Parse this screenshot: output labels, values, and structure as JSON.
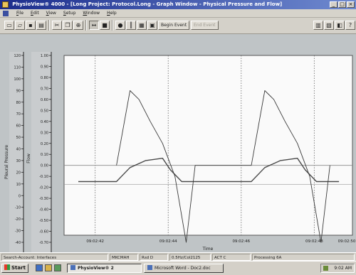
{
  "window": {
    "title": "PhysioView® 4000 - [Long Project: Protocol.Long - Graph Window - Physical Pressure and Flow]",
    "controls": [
      "_",
      "□",
      "×"
    ]
  },
  "menu": {
    "items": [
      {
        "mnemonic": "F",
        "rest": "ile"
      },
      {
        "mnemonic": "E",
        "rest": "dit"
      },
      {
        "mnemonic": "V",
        "rest": "iew"
      },
      {
        "mnemonic": "S",
        "rest": "etup"
      },
      {
        "mnemonic": "W",
        "rest": "indow"
      },
      {
        "mnemonic": "H",
        "rest": "elp"
      }
    ]
  },
  "toolbar": {
    "buttons": [
      "new",
      "open",
      "save",
      "print",
      "cut",
      "copy",
      "zoom",
      "bars",
      "grid",
      "cursor",
      "stop",
      "record",
      "markers",
      "mark-event",
      "calibrate"
    ],
    "begin_event_label": "Begin Event",
    "disabled_label": "End Event"
  },
  "chart_data": {
    "type": "line",
    "xlabel": "Time",
    "x_ticks": [
      "09:02:42",
      "09:02:44",
      "09:02:46",
      "09:02:48",
      "09:02:50"
    ],
    "y_axis_outer": {
      "label": "Pleural Pressure",
      "ticks": [
        "120",
        "110",
        "100",
        "90",
        "80",
        "70",
        "60",
        "50",
        "40",
        "30",
        "20",
        "10",
        "0",
        "-10",
        "-20",
        "-30",
        "-40"
      ]
    },
    "y_axis_inner": {
      "label": "Flow",
      "ticks": [
        "1.00",
        "0.90",
        "0.80",
        "0.70",
        "0.60",
        "0.50",
        "0.40",
        "0.30",
        "0.20",
        "0.10",
        "0.00",
        "-0.10",
        "-0.20",
        "-0.30",
        "-0.40",
        "-0.50",
        "-0.60",
        "-0.70"
      ]
    },
    "series": [
      {
        "color": "#4a4a4a",
        "x": [
          0,
          1.7,
          2.3,
          3.0,
          3.75,
          4.1,
          4.6,
          5.5,
          6.0,
          7.7,
          8.3,
          9.0,
          9.75,
          10.1,
          10.6,
          11.6
        ],
        "y": [
          12,
          12,
          24,
          30,
          32,
          22,
          12,
          12,
          12,
          12,
          24,
          30,
          32,
          22,
          12,
          12
        ]
      },
      {
        "color": "#3a3a3a",
        "x": [
          1.7,
          2.3,
          2.7,
          3.2,
          3.75,
          4.3,
          4.8,
          5.2,
          7.7,
          8.3,
          8.7,
          9.2,
          9.75,
          10.3,
          10.8,
          11.2
        ],
        "y": [
          0.0,
          0.68,
          0.6,
          0.4,
          0.2,
          -0.1,
          -0.7,
          0.0,
          0.0,
          0.68,
          0.6,
          0.4,
          0.2,
          -0.1,
          -0.7,
          0.0
        ]
      }
    ]
  },
  "status": {
    "cells": [
      "Search-Account: Interfaces",
      "MKCMAH",
      "Rsd D",
      "0.5Hz/Col2125",
      "ACT C",
      "Processing 6A"
    ]
  },
  "taskbar": {
    "start_label": "Start",
    "tasks": [
      {
        "label": "PhysioView® 2",
        "active": true
      },
      {
        "label": "Microsoft Word - Doc2.doc",
        "active": false
      }
    ],
    "clock": "9:02 AM"
  }
}
